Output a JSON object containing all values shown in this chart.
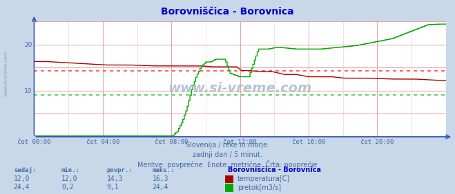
{
  "title": "Borovniščica - Borovnica",
  "bg_color": "#c8d8e8",
  "plot_bg_color": "#ffffff",
  "x_label_times": [
    "čet 00:00",
    "čet 04:00",
    "čet 08:00",
    "čet 12:00",
    "čet 16:00",
    "čet 20:00"
  ],
  "x_ticks_pos": [
    0,
    288,
    576,
    864,
    1152,
    1440
  ],
  "x_max": 1728,
  "y_lim": [
    0,
    25
  ],
  "y_ticks": [
    10,
    20
  ],
  "grid_color_v": "#e8a0a0",
  "grid_color_h": "#e8a0a0",
  "temp_color": "#aa0000",
  "flow_color": "#00aa00",
  "avg_temp": 14.3,
  "avg_flow": 9.1,
  "avg_line_color_temp": "#ff4444",
  "avg_line_color_flow": "#44cc44",
  "watermark": "www.si-vreme.com",
  "subtitle1": "Slovenija / reke in morje.",
  "subtitle2": "zadnji dan / 5 minut.",
  "subtitle3": "Meritve: povprečne  Enote: metrične  Črta: povprečje",
  "legend_title": "Borovniščica - Borovnica",
  "label_temp": "temperatura[C]",
  "label_flow": "pretok[m3/s]",
  "stats_headers": [
    "sedaj:",
    "min.:",
    "povpr.:",
    "maks.:"
  ],
  "stats_temp": [
    "12,0",
    "12,0",
    "14,3",
    "16,3"
  ],
  "stats_flow": [
    "24,4",
    "0,2",
    "9,1",
    "24,4"
  ],
  "text_color": "#4466aa",
  "axis_color": "#3355bb",
  "title_color": "#0000cc"
}
